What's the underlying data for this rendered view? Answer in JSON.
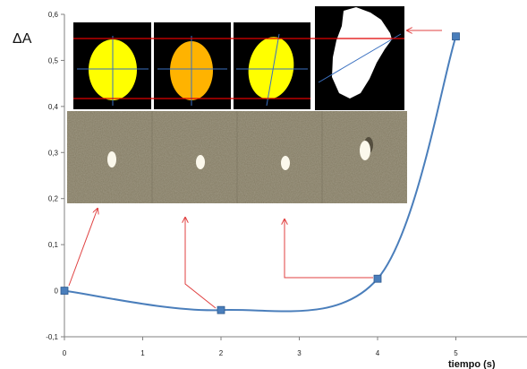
{
  "chart_data": {
    "type": "line",
    "title": "",
    "xlabel": "tiempo (s)",
    "ylabel": "ΔA",
    "xlim": [
      0,
      6
    ],
    "ylim": [
      -0.1,
      0.6
    ],
    "x_ticks": [
      "0",
      "1",
      "2",
      "3",
      "4",
      "5"
    ],
    "y_ticks": [
      "-0,1",
      "0",
      "0,1",
      "0,2",
      "0,3",
      "0,4",
      "0,5",
      "0,6"
    ],
    "grid": false,
    "legend": "none",
    "series": [
      {
        "x": [
          0,
          2,
          4,
          5
        ],
        "values": [
          0.0,
          -0.042,
          0.026,
          0.552
        ],
        "color": "#4a7ebb",
        "marker": "square"
      }
    ],
    "colors": {
      "line": "#4a7ebb",
      "annotation_arrow": "#e04040",
      "blob_fill": [
        "#ffff00",
        "#ffb300",
        "#ffff00",
        "#ffffff"
      ],
      "panel_bg": "#000000",
      "guide_line_red": "#e00000",
      "guide_line_blue": "#3a70c0"
    },
    "inset_images": {
      "top_strip": "four black panels showing segmented particle silhouettes",
      "bottom_strip": "grey granular texture photo with bright particle"
    }
  }
}
